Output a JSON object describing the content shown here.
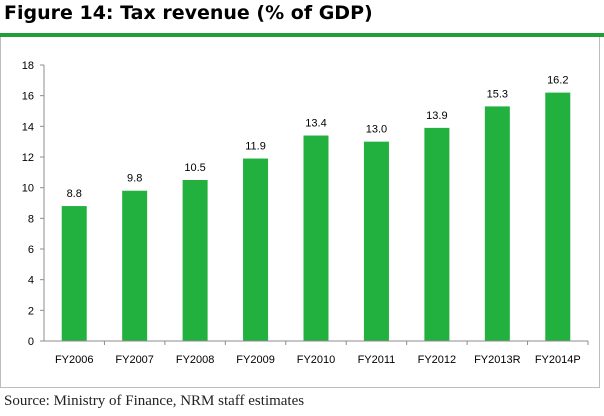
{
  "figure": {
    "title": "Figure 14: Tax revenue (% of GDP)",
    "source": "Source: Ministry of Finance, NRM staff estimates"
  },
  "chart_data": {
    "type": "bar",
    "title": "Figure 14: Tax revenue (% of GDP)",
    "xlabel": "",
    "ylabel": "",
    "categories": [
      "FY2006",
      "FY2007",
      "FY2008",
      "FY2009",
      "FY2010",
      "FY2011",
      "FY2012",
      "FY2013R",
      "FY2014P"
    ],
    "values": [
      8.8,
      9.8,
      10.5,
      11.9,
      13.4,
      13.0,
      13.9,
      15.3,
      16.2
    ],
    "data_labels": [
      "8.8",
      "9.8",
      "10.5",
      "11.9",
      "13.4",
      "13.0",
      "13.9",
      "15.3",
      "16.2"
    ],
    "ylim": [
      0,
      18
    ],
    "yticks": [
      0,
      2,
      4,
      6,
      8,
      10,
      12,
      14,
      16,
      18
    ],
    "grid": false,
    "legend": "none",
    "bar_color": "#22b03e"
  }
}
